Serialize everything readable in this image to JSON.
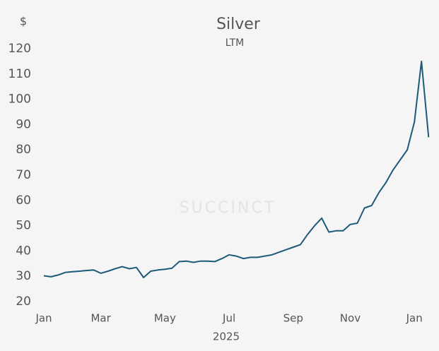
{
  "chart_data": {
    "type": "line",
    "title": "Silver",
    "subtitle": "LTM",
    "y_label": "$",
    "x_label": "2025",
    "watermark": "SUCCINCT",
    "categories": [
      "Jan",
      null,
      null,
      null,
      null,
      null,
      null,
      null,
      "Mar",
      null,
      null,
      null,
      null,
      null,
      null,
      null,
      null,
      "May",
      null,
      null,
      null,
      null,
      null,
      null,
      null,
      null,
      "Jul",
      null,
      null,
      null,
      null,
      null,
      null,
      null,
      null,
      "Sep",
      null,
      null,
      null,
      null,
      null,
      null,
      null,
      "Nov",
      null,
      null,
      null,
      null,
      null,
      null,
      null,
      null,
      "Jan",
      null,
      null
    ],
    "series": [
      {
        "name": "Silver",
        "color": "#1d5a7a",
        "values": [
          30.2,
          29.8,
          30.5,
          31.5,
          31.8,
          32,
          32.3,
          32.5,
          31.2,
          32,
          33,
          33.8,
          33,
          33.5,
          29.5,
          32,
          32.5,
          32.8,
          33.2,
          35.8,
          36,
          35.5,
          36,
          36,
          35.8,
          37,
          38.5,
          38,
          37,
          37.5,
          37.5,
          38,
          38.5,
          39.5,
          40.5,
          41.5,
          42.5,
          46.5,
          50,
          53,
          47.5,
          48,
          48,
          50.5,
          51,
          57,
          58,
          63,
          67,
          72,
          76,
          80,
          91,
          115,
          85
        ]
      }
    ],
    "ylim": [
      20,
      120
    ],
    "yticks": [
      20,
      30,
      40,
      50,
      60,
      70,
      80,
      90,
      100,
      110,
      120
    ],
    "grid": false
  }
}
